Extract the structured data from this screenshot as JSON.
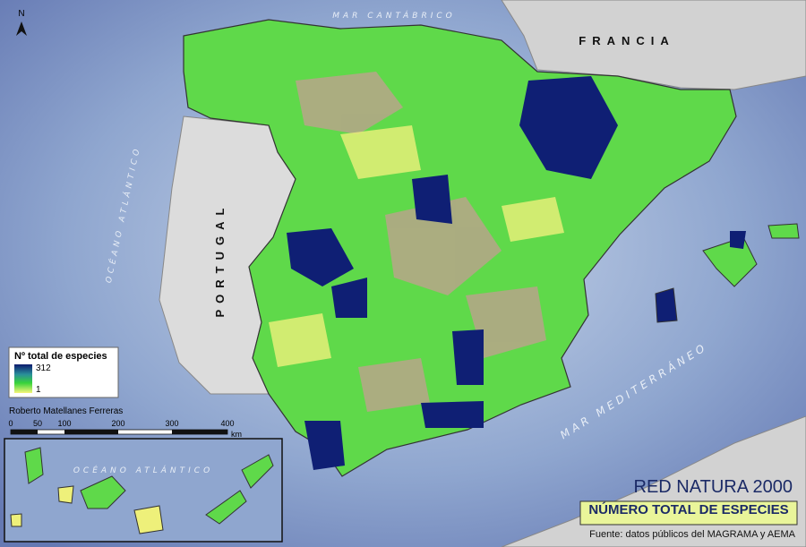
{
  "map": {
    "north": "N",
    "labels": {
      "cantabrico": "MAR CANTÁBRICO",
      "francia": "FRANCIA",
      "portugal": "PORTUGAL",
      "atlantico": "OCÉANO ATLÁNTICO",
      "mediterraneo": "MAR MEDITERRÁNEO",
      "atlantico_inset": "OCÉANO ATLÁNTICO"
    },
    "legend": {
      "title": "Nº total de especies",
      "max": "312",
      "min": "1"
    },
    "author": "Roberto Matellanes Ferreras",
    "scale": {
      "ticks": [
        "0",
        "50",
        "100",
        "200",
        "300",
        "400"
      ],
      "unit": "km"
    },
    "title": "RED NATURA 2000",
    "subtitle": "NÚMERO TOTAL DE ESPECIES",
    "source": "Fuente: datos públicos del MAGRAMA y AEMA"
  }
}
